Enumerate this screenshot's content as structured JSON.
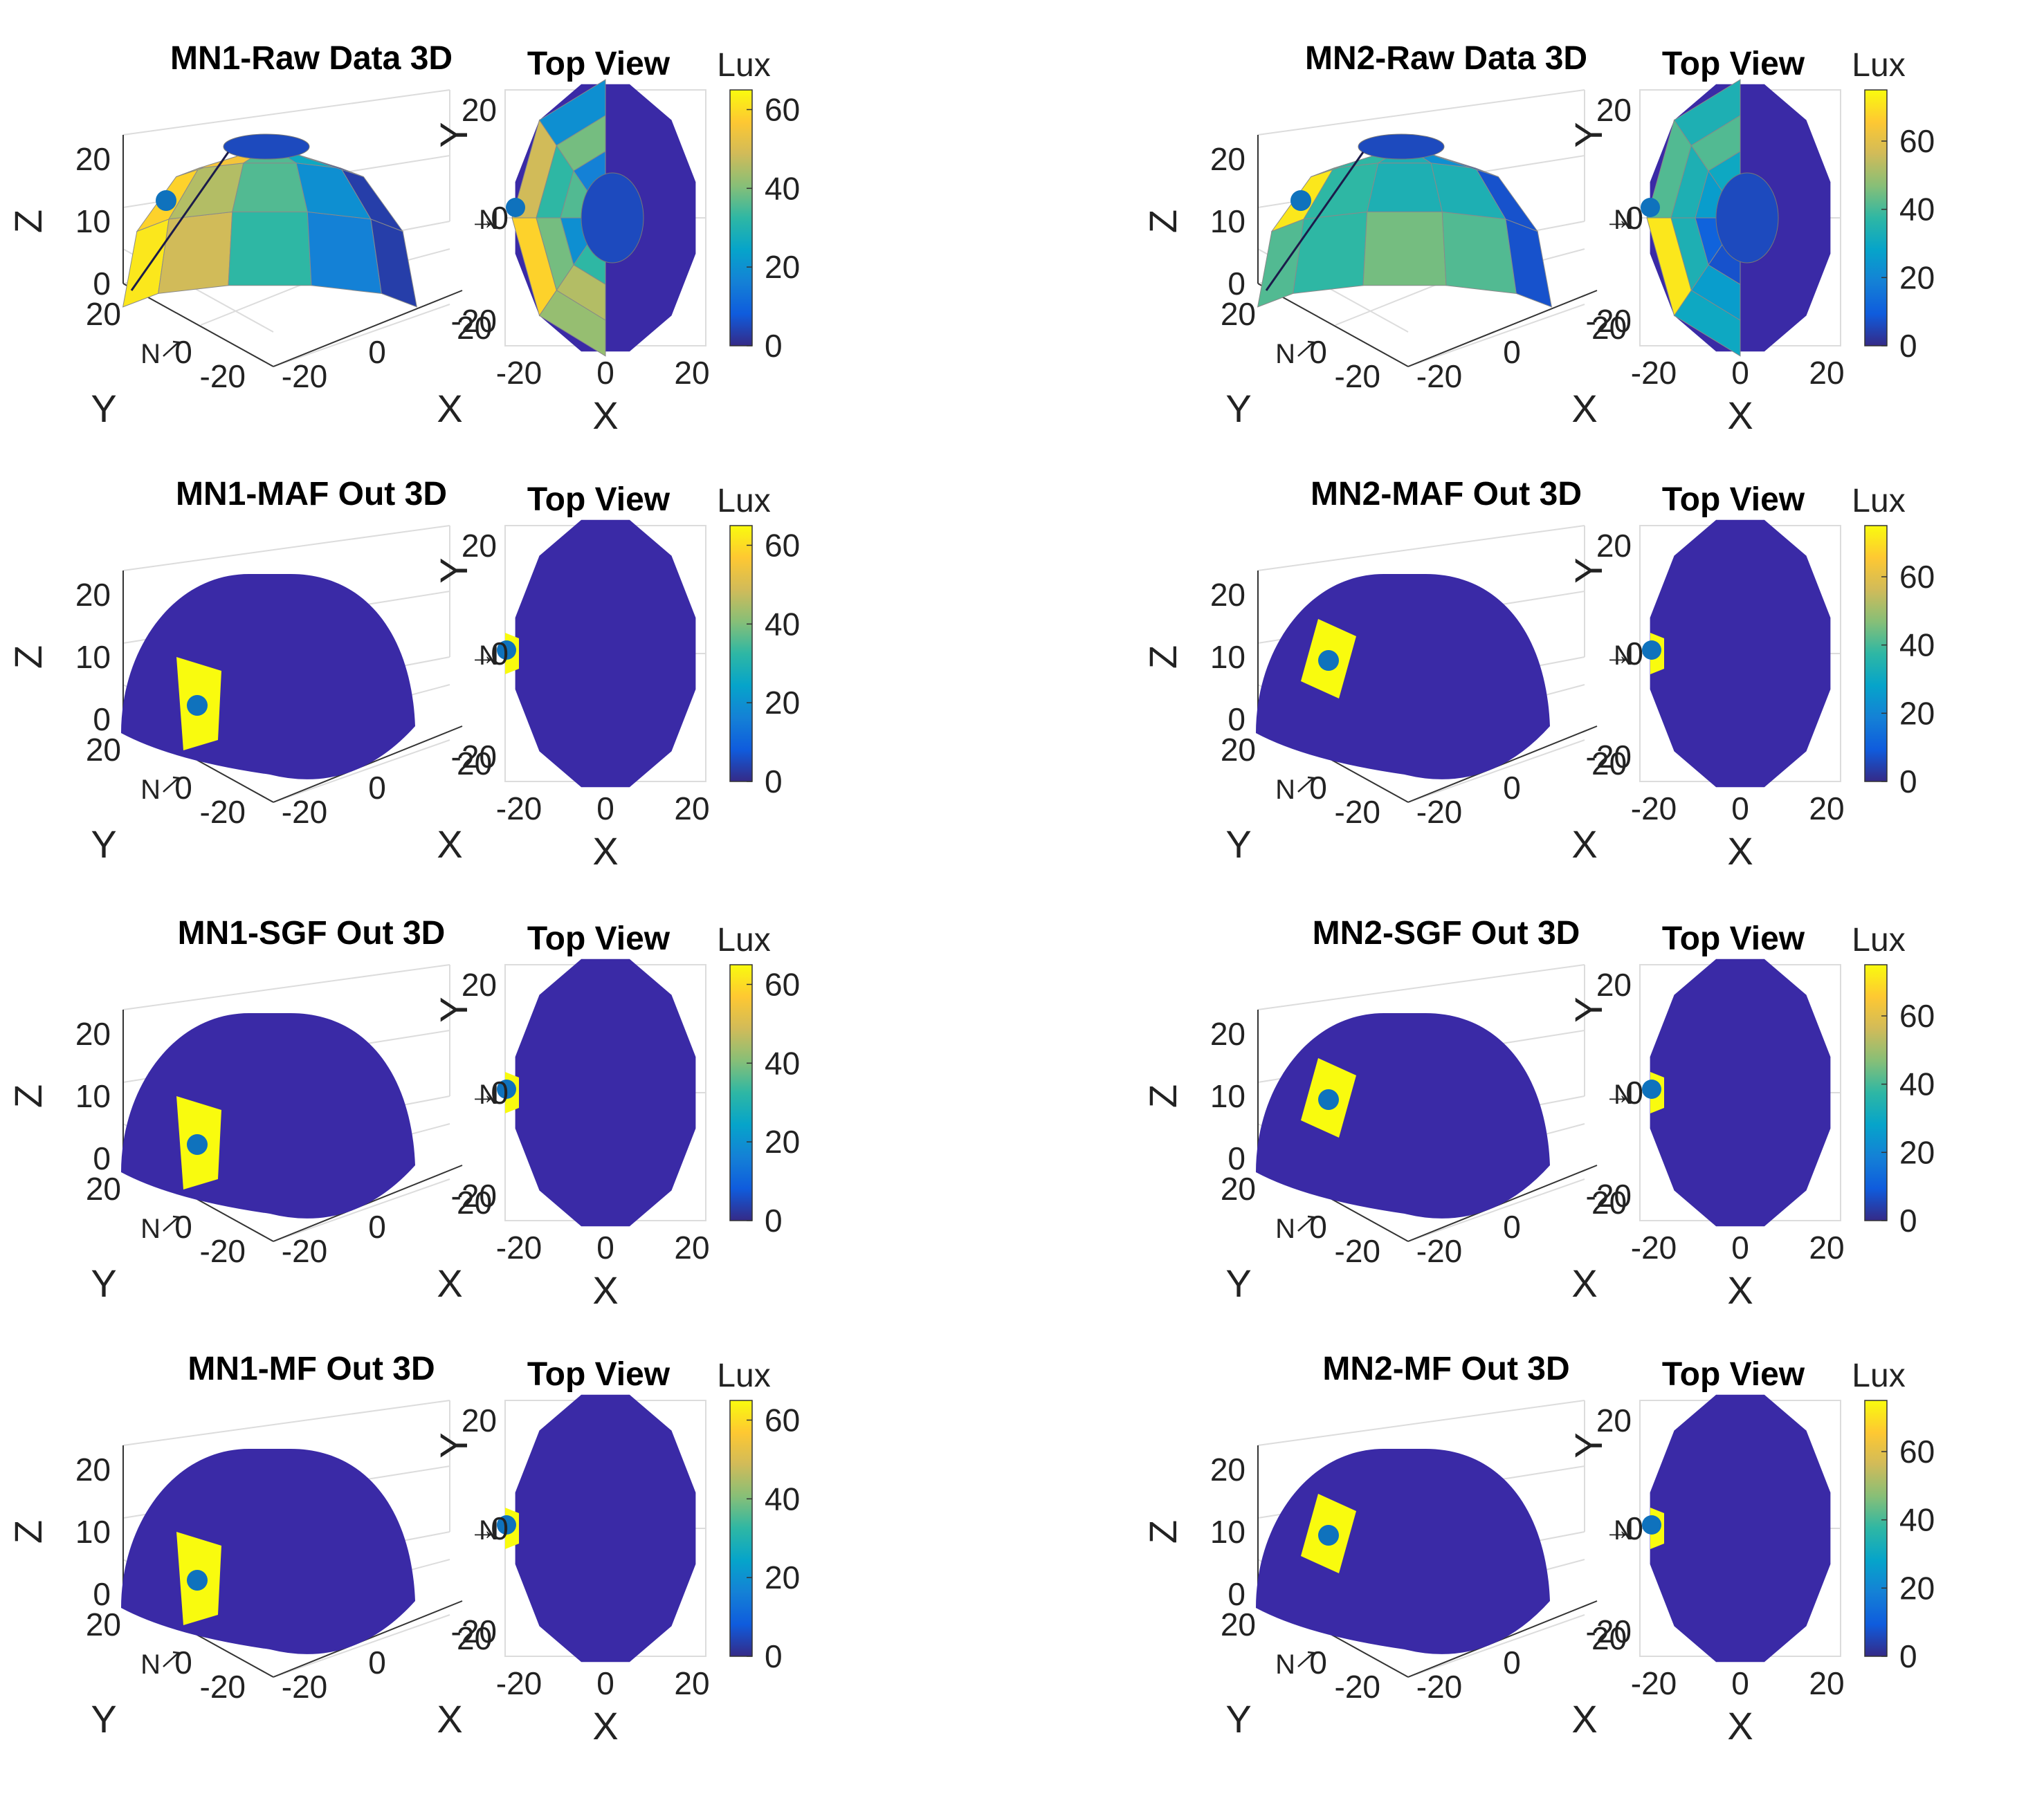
{
  "chart_data": [
    {
      "type": "surface3d",
      "node": "MN1",
      "title": "MN1-Raw Data 3D",
      "top_title": "Top View",
      "colorbar": {
        "label": "Lux",
        "range": [
          0,
          65
        ],
        "ticks": [
          "0",
          "20",
          "40",
          "60"
        ]
      },
      "axes3d": {
        "xlabel": "X",
        "ylabel": "Y",
        "zlabel": "Z",
        "xticks": [
          "-20",
          "0",
          "20"
        ],
        "yticks": [
          "20",
          "0",
          "-20"
        ],
        "zticks": [
          "0",
          "10",
          "20"
        ]
      },
      "axes2d": {
        "xlabel": "X",
        "ylabel": "Y",
        "xticks": [
          "-20",
          "0",
          "20"
        ],
        "yticks": [
          "20",
          "0",
          "-20"
        ]
      },
      "marker": {
        "label": "N",
        "arrow": "→",
        "value": "0"
      },
      "variant": "raw",
      "cells_3d": [
        [
          0.75,
          0.85,
          0.55,
          0.4,
          0.05
        ],
        [
          0.9,
          0.7,
          0.55,
          0.3,
          0.05
        ],
        [
          0.95,
          0.75,
          0.5,
          0.25,
          0.05
        ],
        [
          0.2,
          0.2,
          0.2,
          0.2,
          0.2
        ]
      ],
      "cells_top": [
        [
          0.65,
          0.7,
          0.5,
          0.05
        ],
        [
          0.9,
          0.6,
          0.3,
          0.05
        ],
        [
          0.75,
          0.5,
          0.55,
          0.05
        ],
        [
          0.3,
          0.6,
          0.25,
          0.05
        ]
      ]
    },
    {
      "type": "surface3d",
      "node": "MN2",
      "title": "MN2-Raw Data 3D",
      "top_title": "Top View",
      "colorbar": {
        "label": "Lux",
        "range": [
          0,
          75
        ],
        "ticks": [
          "0",
          "20",
          "40",
          "60"
        ]
      },
      "axes3d": {
        "xlabel": "X",
        "ylabel": "Y",
        "zlabel": "Z",
        "xticks": [
          "-20",
          "0",
          "20"
        ],
        "yticks": [
          "20",
          "0",
          "-20"
        ],
        "zticks": [
          "0",
          "10",
          "20"
        ]
      },
      "axes2d": {
        "xlabel": "X",
        "ylabel": "Y",
        "xticks": [
          "-20",
          "0",
          "20"
        ],
        "yticks": [
          "20",
          "0",
          "-20"
        ]
      },
      "marker": {
        "label": "N",
        "arrow": "→",
        "value": "0"
      },
      "variant": "raw",
      "cells_3d": [
        [
          0.55,
          0.5,
          0.45,
          0.3,
          0.08
        ],
        [
          0.95,
          0.5,
          0.45,
          0.45,
          0.1
        ],
        [
          0.55,
          0.5,
          0.6,
          0.55,
          0.1
        ],
        [
          0.4,
          0.4,
          0.35,
          0.3,
          0.3
        ]
      ],
      "cells_top": [
        [
          0.4,
          0.35,
          0.1,
          0.05
        ],
        [
          0.95,
          0.45,
          0.15,
          0.05
        ],
        [
          0.55,
          0.45,
          0.35,
          0.08
        ],
        [
          0.45,
          0.55,
          0.4,
          0.1
        ]
      ]
    },
    {
      "type": "surface3d",
      "node": "MN1",
      "title": "MN1-MAF Out 3D",
      "top_title": "Top View",
      "colorbar": {
        "label": "Lux",
        "range": [
          0,
          65
        ],
        "ticks": [
          "0",
          "20",
          "40",
          "60"
        ]
      },
      "axes3d": {
        "xlabel": "X",
        "ylabel": "Y",
        "zlabel": "Z",
        "xticks": [
          "-20",
          "0",
          "20"
        ],
        "yticks": [
          "20",
          "0",
          "-20"
        ],
        "zticks": [
          "0",
          "10",
          "20"
        ]
      },
      "axes2d": {
        "xlabel": "X",
        "ylabel": "Y",
        "xticks": [
          "-20",
          "0",
          "20"
        ],
        "yticks": [
          "20",
          "0",
          "-20"
        ]
      },
      "marker": {
        "label": "N",
        "arrow": "→",
        "value": "0"
      },
      "variant": "filtered-low"
    },
    {
      "type": "surface3d",
      "node": "MN2",
      "title": "MN2-MAF Out 3D",
      "top_title": "Top View",
      "colorbar": {
        "label": "Lux",
        "range": [
          0,
          75
        ],
        "ticks": [
          "0",
          "20",
          "40",
          "60"
        ]
      },
      "axes3d": {
        "xlabel": "X",
        "ylabel": "Y",
        "zlabel": "Z",
        "xticks": [
          "-20",
          "0",
          "20"
        ],
        "yticks": [
          "20",
          "0",
          "-20"
        ],
        "zticks": [
          "0",
          "10",
          "20"
        ]
      },
      "axes2d": {
        "xlabel": "X",
        "ylabel": "Y",
        "xticks": [
          "-20",
          "0",
          "20"
        ],
        "yticks": [
          "20",
          "0",
          "-20"
        ]
      },
      "marker": {
        "label": "N",
        "arrow": "→",
        "value": "0"
      },
      "variant": "filtered-high"
    },
    {
      "type": "surface3d",
      "node": "MN1",
      "title": "MN1-SGF Out 3D",
      "top_title": "Top View",
      "colorbar": {
        "label": "Lux",
        "range": [
          0,
          65
        ],
        "ticks": [
          "0",
          "20",
          "40",
          "60"
        ]
      },
      "axes3d": {
        "xlabel": "X",
        "ylabel": "Y",
        "zlabel": "Z",
        "xticks": [
          "-20",
          "0",
          "20"
        ],
        "yticks": [
          "20",
          "0",
          "-20"
        ],
        "zticks": [
          "0",
          "10",
          "20"
        ]
      },
      "axes2d": {
        "xlabel": "X",
        "ylabel": "Y",
        "xticks": [
          "-20",
          "0",
          "20"
        ],
        "yticks": [
          "20",
          "0",
          "-20"
        ]
      },
      "marker": {
        "label": "N",
        "arrow": "→",
        "value": "0"
      },
      "variant": "filtered-low"
    },
    {
      "type": "surface3d",
      "node": "MN2",
      "title": "MN2-SGF Out 3D",
      "top_title": "Top View",
      "colorbar": {
        "label": "Lux",
        "range": [
          0,
          75
        ],
        "ticks": [
          "0",
          "20",
          "40",
          "60"
        ]
      },
      "axes3d": {
        "xlabel": "X",
        "ylabel": "Y",
        "zlabel": "Z",
        "xticks": [
          "-20",
          "0",
          "20"
        ],
        "yticks": [
          "20",
          "0",
          "-20"
        ],
        "zticks": [
          "0",
          "10",
          "20"
        ]
      },
      "axes2d": {
        "xlabel": "X",
        "ylabel": "Y",
        "xticks": [
          "-20",
          "0",
          "20"
        ],
        "yticks": [
          "20",
          "0",
          "-20"
        ]
      },
      "marker": {
        "label": "N",
        "arrow": "→",
        "value": "0"
      },
      "variant": "filtered-high"
    },
    {
      "type": "surface3d",
      "node": "MN1",
      "title": "MN1-MF Out 3D",
      "top_title": "Top View",
      "colorbar": {
        "label": "Lux",
        "range": [
          0,
          65
        ],
        "ticks": [
          "0",
          "20",
          "40",
          "60"
        ]
      },
      "axes3d": {
        "xlabel": "X",
        "ylabel": "Y",
        "zlabel": "Z",
        "xticks": [
          "-20",
          "0",
          "20"
        ],
        "yticks": [
          "20",
          "0",
          "-20"
        ],
        "zticks": [
          "0",
          "10",
          "20"
        ]
      },
      "axes2d": {
        "xlabel": "X",
        "ylabel": "Y",
        "xticks": [
          "-20",
          "0",
          "20"
        ],
        "yticks": [
          "20",
          "0",
          "-20"
        ]
      },
      "marker": {
        "label": "N",
        "arrow": "→",
        "value": "0"
      },
      "variant": "filtered-low"
    },
    {
      "type": "surface3d",
      "node": "MN2",
      "title": "MN2-MF Out 3D",
      "top_title": "Top View",
      "colorbar": {
        "label": "Lux",
        "range": [
          0,
          75
        ],
        "ticks": [
          "0",
          "20",
          "40",
          "60"
        ]
      },
      "axes3d": {
        "xlabel": "X",
        "ylabel": "Y",
        "zlabel": "Z",
        "xticks": [
          "-20",
          "0",
          "20"
        ],
        "yticks": [
          "20",
          "0",
          "-20"
        ],
        "zticks": [
          "0",
          "10",
          "20"
        ]
      },
      "axes2d": {
        "xlabel": "X",
        "ylabel": "Y",
        "xticks": [
          "-20",
          "0",
          "20"
        ],
        "yticks": [
          "20",
          "0",
          "-20"
        ]
      },
      "marker": {
        "label": "N",
        "arrow": "→",
        "value": "0"
      },
      "variant": "filtered-high"
    }
  ]
}
